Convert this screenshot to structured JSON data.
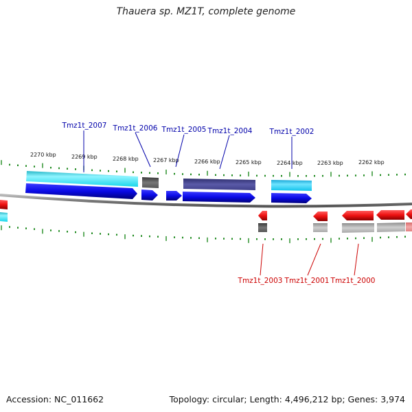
{
  "title": "Thauera sp. MZ1T, complete genome",
  "footer": {
    "accession": "Accession: NC_011662",
    "summary": "Topology: circular; Length: 4,496,212 bp; Genes: 3,974"
  },
  "colors": {
    "backbone": "#8a8a8a",
    "tick": "#1f8a1f",
    "forward_label": "#0000aa",
    "reverse_label": "#cc0000",
    "cds_forward": "#0a0ae6",
    "cds_reverse": "#ee1111",
    "gene_cyan": "#20d8e8",
    "gene_grey": "#666666",
    "gene_purple": "#4a4a9a",
    "gene_lightgrey": "#b0b0b0",
    "gene_pink": "#e88080"
  },
  "scale_labels": [
    {
      "id": "2270",
      "text": "2270 kbp"
    },
    {
      "id": "2269",
      "text": "2269 kbp"
    },
    {
      "id": "2268",
      "text": "2268 kbp"
    },
    {
      "id": "2267",
      "text": "2267 kbp"
    },
    {
      "id": "2266",
      "text": "2266 kbp"
    },
    {
      "id": "2265",
      "text": "2265 kbp"
    },
    {
      "id": "2264",
      "text": "2264 kbp"
    },
    {
      "id": "2263",
      "text": "2263 kbp"
    },
    {
      "id": "2262",
      "text": "2262 kbp"
    }
  ],
  "forward_genes": [
    {
      "id": "2007",
      "label": "Tmz1t_2007"
    },
    {
      "id": "2006",
      "label": "Tmz1t_2006"
    },
    {
      "id": "2005",
      "label": "Tmz1t_2005"
    },
    {
      "id": "2004",
      "label": "Tmz1t_2004"
    },
    {
      "id": "2002",
      "label": "Tmz1t_2002"
    }
  ],
  "reverse_genes": [
    {
      "id": "2003",
      "label": "Tmz1t_2003"
    },
    {
      "id": "2001",
      "label": "Tmz1t_2001"
    },
    {
      "id": "2000",
      "label": "Tmz1t_2000"
    }
  ]
}
